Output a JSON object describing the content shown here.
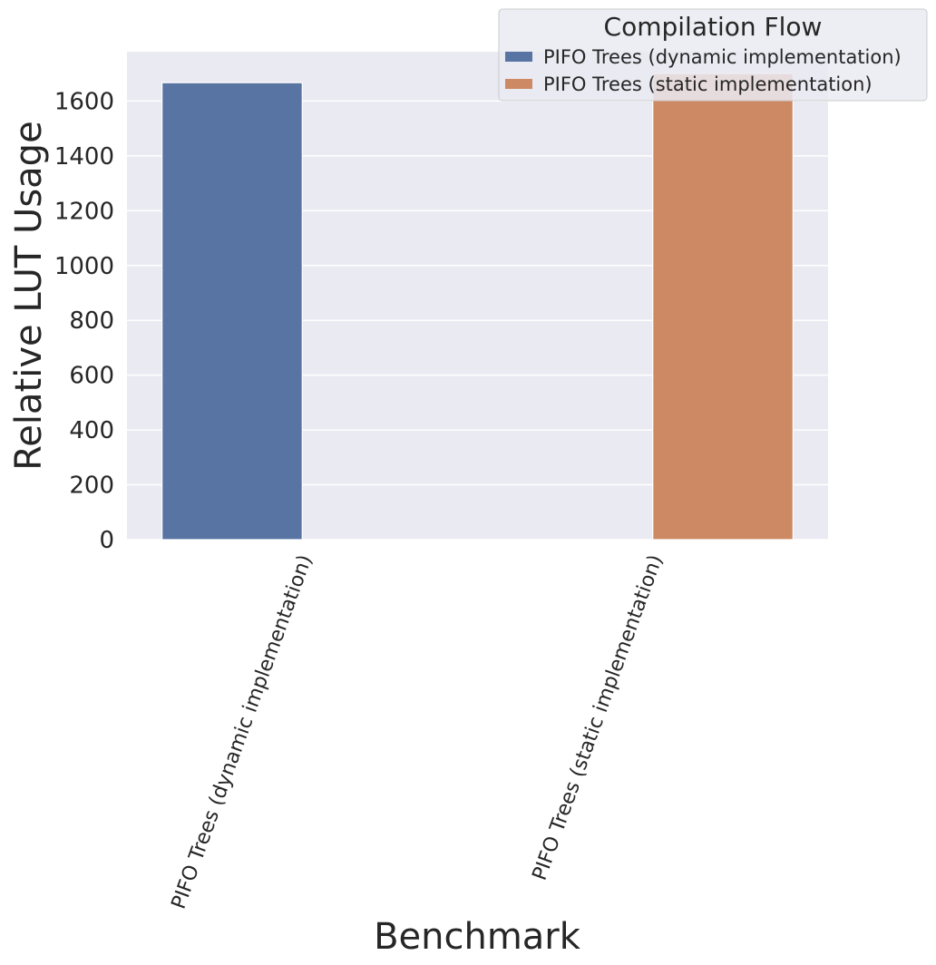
{
  "chart_data": {
    "type": "bar",
    "title": "",
    "xlabel": "Benchmark",
    "ylabel": "Relative LUT Usage",
    "ylim": [
      0,
      1780
    ],
    "yticks": [
      0,
      200,
      400,
      600,
      800,
      1000,
      1200,
      1400,
      1600
    ],
    "grid": true,
    "categories": [
      "PIFO Trees (dynamic implementation)",
      "PIFO Trees (static implementation)"
    ],
    "series": [
      {
        "name": "PIFO Trees (dynamic implementation)",
        "color": "#5874a2",
        "values": [
          1667,
          0
        ]
      },
      {
        "name": "PIFO Trees (static implementation)",
        "color": "#cc8963",
        "values": [
          0,
          1700
        ]
      }
    ],
    "legend": {
      "title": "Compilation Flow",
      "position": "top-right"
    },
    "colors": {
      "plot_background": "#eaeaf2",
      "grid": "#ffffff",
      "text": "#262626"
    }
  }
}
